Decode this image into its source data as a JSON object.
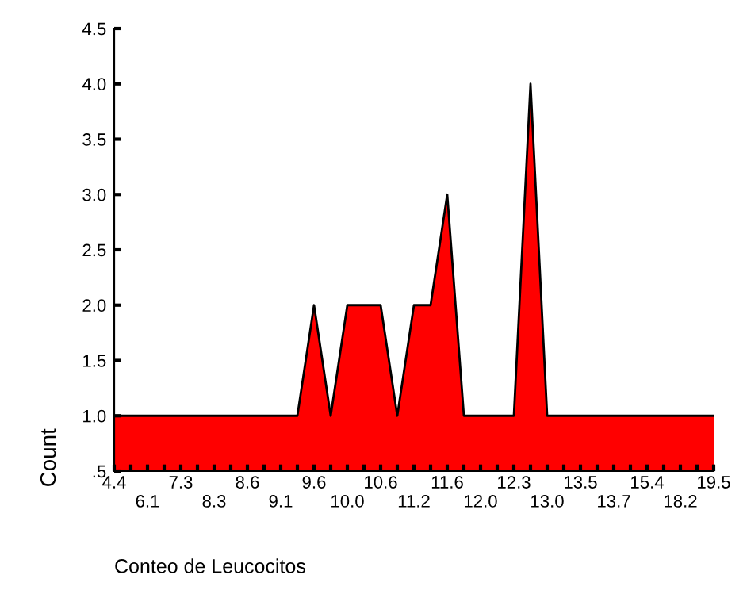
{
  "chart_data": {
    "type": "area",
    "xlabel": "Conteo de Leucocitos",
    "ylabel": "Count",
    "categories": [
      "4.4",
      null,
      "6.1",
      null,
      "7.3",
      null,
      "8.3",
      null,
      "8.6",
      null,
      "9.1",
      null,
      "9.6",
      null,
      "10.0",
      null,
      "10.6",
      null,
      "11.2",
      null,
      "11.6",
      null,
      "12.0",
      null,
      "12.3",
      null,
      "13.0",
      null,
      "13.5",
      null,
      "13.7",
      null,
      "15.4",
      null,
      "18.2",
      null,
      "19.5"
    ],
    "series": [
      {
        "color": "#ff0000",
        "values": [
          1,
          1,
          1,
          1,
          1,
          1,
          1,
          1,
          1,
          1,
          1,
          1,
          2,
          1,
          2,
          2,
          2,
          1,
          2,
          2,
          3,
          1,
          1,
          1,
          1,
          4,
          1,
          1,
          1,
          1,
          1,
          1,
          1,
          1,
          1,
          1,
          1
        ]
      }
    ],
    "ylim": [
      0.5,
      4.5
    ],
    "yticks": [
      {
        "value": 0.5,
        "label": ".5"
      },
      {
        "value": 1.0,
        "label": "1.0"
      },
      {
        "value": 1.5,
        "label": "1.5"
      },
      {
        "value": 2.0,
        "label": "2.0"
      },
      {
        "value": 2.5,
        "label": "2.5"
      },
      {
        "value": 3.0,
        "label": "3.0"
      },
      {
        "value": 3.5,
        "label": "3.5"
      },
      {
        "value": 4.0,
        "label": "4.0"
      },
      {
        "value": 4.5,
        "label": "4.5"
      }
    ],
    "grid": false,
    "legend": false
  }
}
